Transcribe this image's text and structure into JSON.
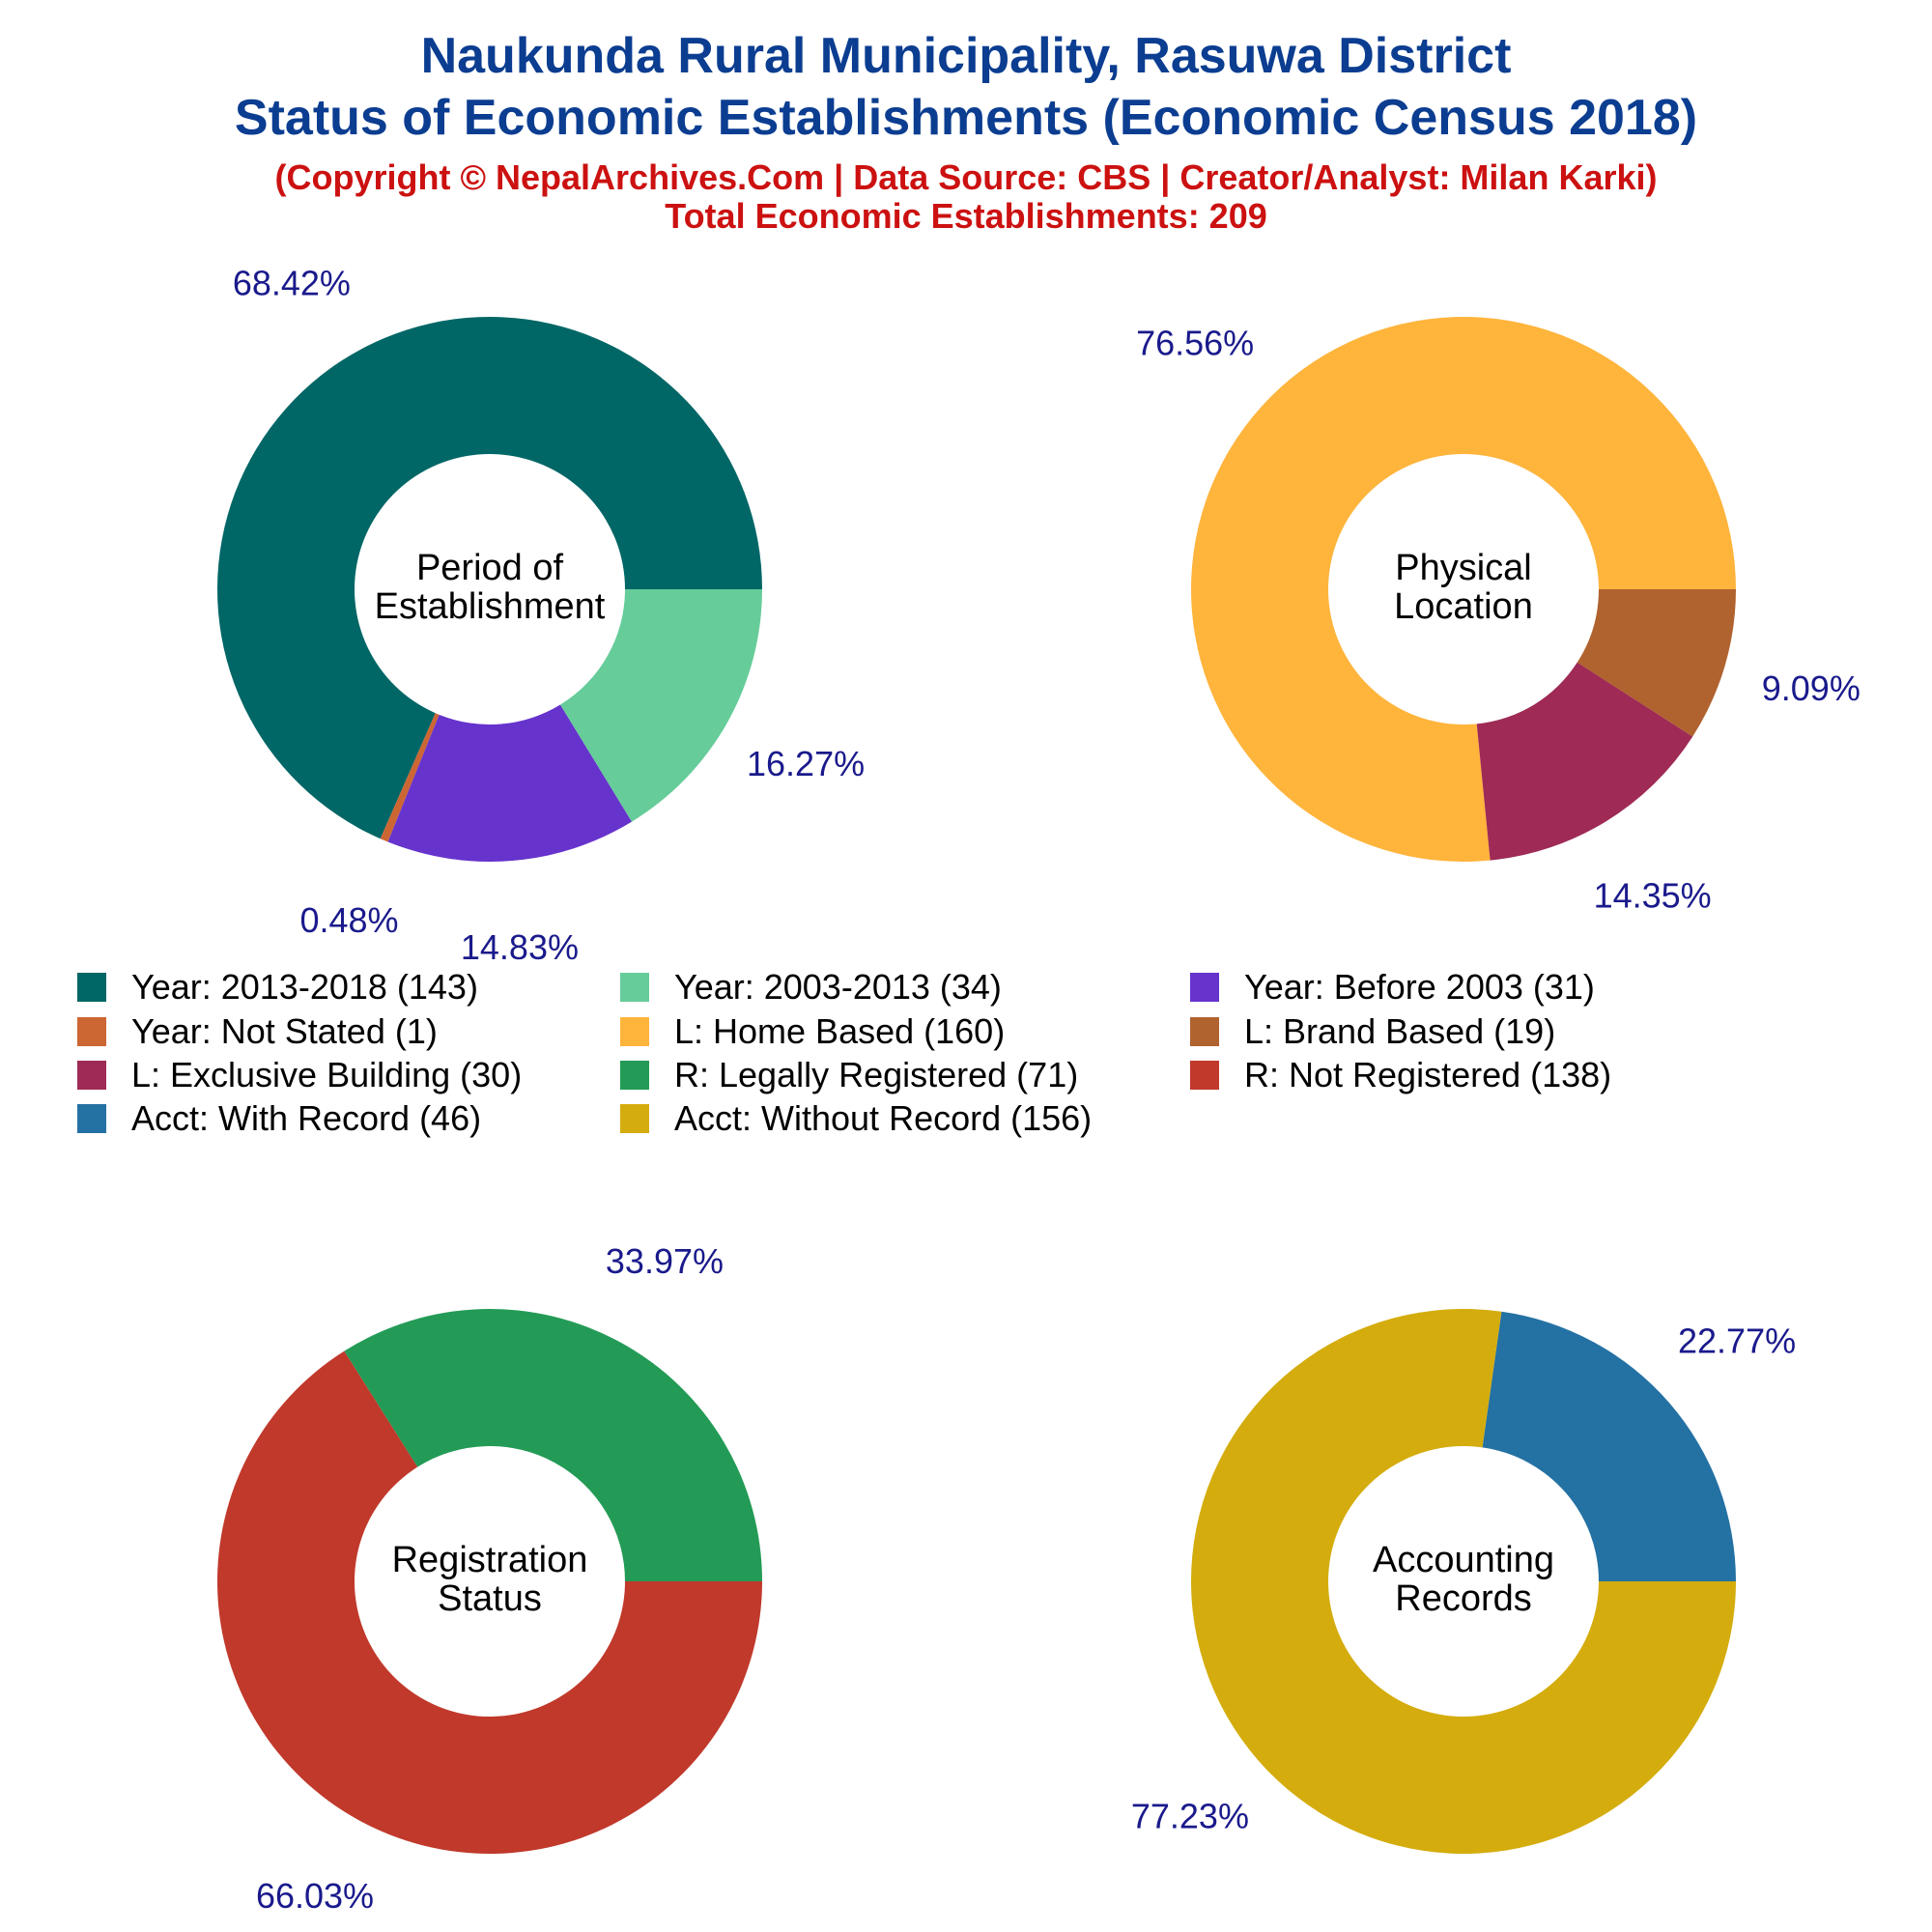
{
  "header": {
    "title_line1": "Naukunda Rural Municipality, Rasuwa District",
    "title_line2": "Status of Economic Establishments (Economic Census 2018)",
    "copyright": "(Copyright © NepalArchives.Com | Data Source: CBS | Creator/Analyst: Milan Karki)",
    "total": "Total Economic Establishments: 209"
  },
  "colors": {
    "title": "#0b3d91",
    "subtitle": "#cc1111",
    "pct_label": "#1a1a8c"
  },
  "chart_data": [
    {
      "type": "pie",
      "center_label": [
        "Period of",
        "Establishment"
      ],
      "slices": [
        {
          "name": "Year: 2013-2018",
          "count": 143,
          "percent": 68.42,
          "label": "68.42%",
          "color": "#006666"
        },
        {
          "name": "Year: Not Stated",
          "count": 1,
          "percent": 0.48,
          "label": "0.48%",
          "color": "#cc6633"
        },
        {
          "name": "Year: Before 2003",
          "count": 31,
          "percent": 14.83,
          "label": "14.83%",
          "color": "#6633cc"
        },
        {
          "name": "Year: 2003-2013",
          "count": 34,
          "percent": 16.27,
          "label": "16.27%",
          "color": "#66cc99"
        }
      ]
    },
    {
      "type": "pie",
      "center_label": [
        "Physical",
        "Location"
      ],
      "slices": [
        {
          "name": "L: Home Based",
          "count": 160,
          "percent": 76.56,
          "label": "76.56%",
          "color": "#ffb43c"
        },
        {
          "name": "L: Exclusive Building",
          "count": 30,
          "percent": 14.35,
          "label": "14.35%",
          "color": "#9e2a55"
        },
        {
          "name": "L: Brand Based",
          "count": 19,
          "percent": 9.09,
          "label": "9.09%",
          "color": "#b0622f"
        }
      ]
    },
    {
      "type": "pie",
      "center_label": [
        "Registration",
        "Status"
      ],
      "slices": [
        {
          "name": "R: Legally Registered",
          "count": 71,
          "percent": 33.97,
          "label": "33.97%",
          "color": "#239b56"
        },
        {
          "name": "R: Not Registered",
          "count": 138,
          "percent": 66.03,
          "label": "66.03%",
          "color": "#c0392b"
        }
      ]
    },
    {
      "type": "pie",
      "center_label": [
        "Accounting",
        "Records"
      ],
      "slices": [
        {
          "name": "Acct: With Record",
          "count": 46,
          "percent": 22.77,
          "label": "22.77%",
          "color": "#2471a3"
        },
        {
          "name": "Acct: Without Record",
          "count": 156,
          "percent": 77.23,
          "label": "77.23%",
          "color": "#d4ac0d"
        }
      ]
    }
  ],
  "legend": [
    {
      "label": "Year: 2013-2018 (143)",
      "color": "#006666"
    },
    {
      "label": "Year: 2003-2013 (34)",
      "color": "#66cc99"
    },
    {
      "label": "Year: Before 2003 (31)",
      "color": "#6633cc"
    },
    {
      "label": "Year: Not Stated (1)",
      "color": "#cc6633"
    },
    {
      "label": "L: Home Based (160)",
      "color": "#ffb43c"
    },
    {
      "label": "L: Brand Based (19)",
      "color": "#b0622f"
    },
    {
      "label": "L: Exclusive Building (30)",
      "color": "#9e2a55"
    },
    {
      "label": "R: Legally Registered (71)",
      "color": "#239b56"
    },
    {
      "label": "R: Not Registered (138)",
      "color": "#c0392b"
    },
    {
      "label": "Acct: With Record (46)",
      "color": "#2471a3"
    },
    {
      "label": "Acct: Without Record (156)",
      "color": "#d4ac0d"
    }
  ]
}
